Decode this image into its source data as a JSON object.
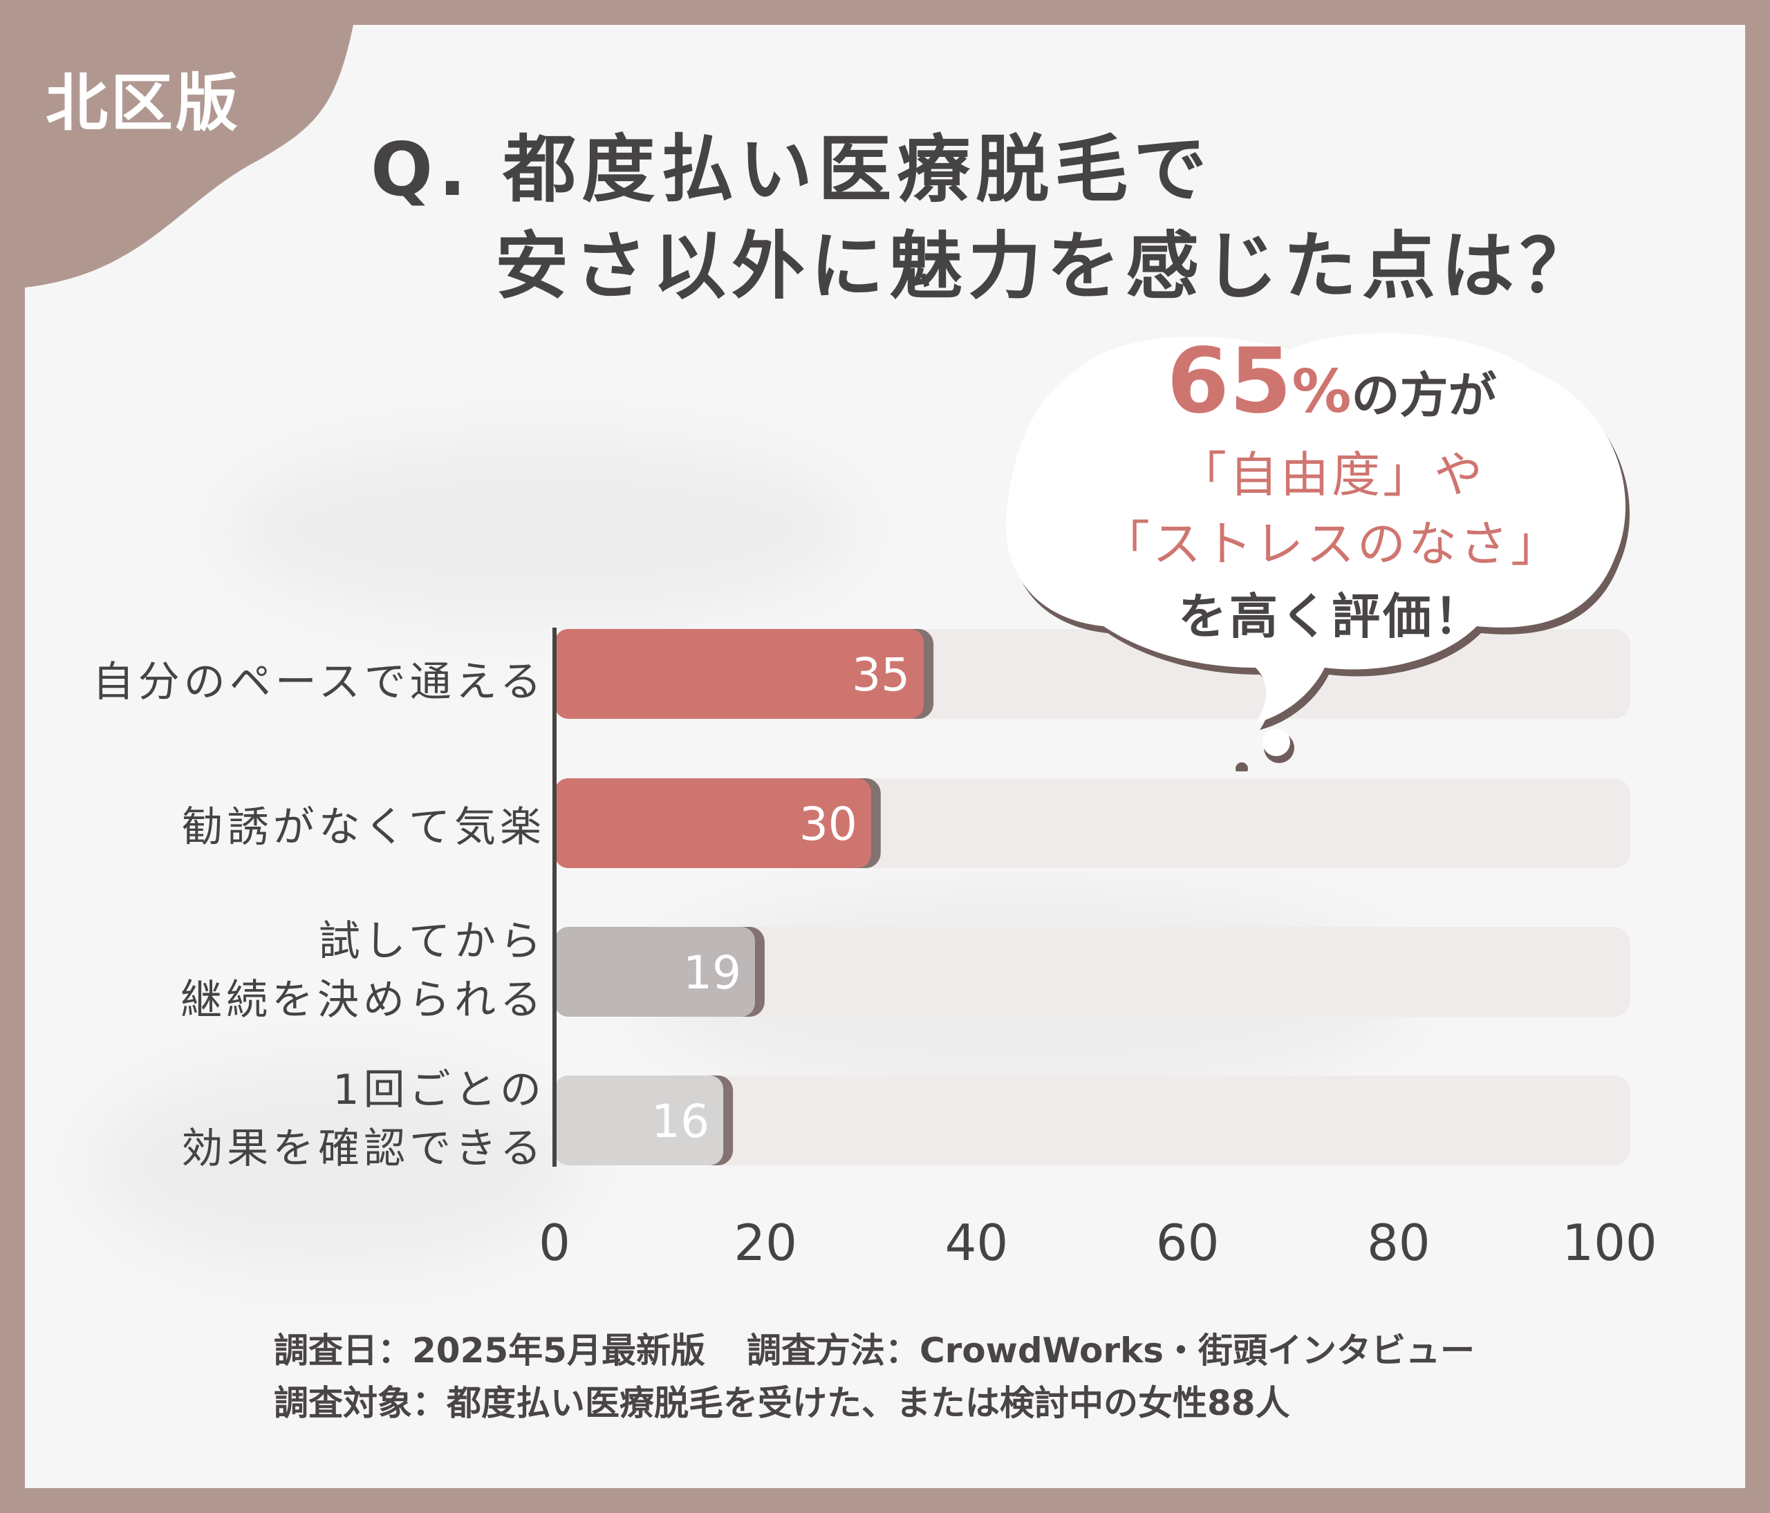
{
  "badge": "北区版",
  "title": {
    "line1": "Q. 都度払い医療脱毛で",
    "line2": "安さ以外に魅力を感じた点は？"
  },
  "callout": {
    "percent": "65",
    "percent_sign": "%",
    "line1_rest": "の方が",
    "line2": "「自由度」や",
    "line3": "「ストレスのなさ」",
    "line4": "を高く評価！"
  },
  "colors": {
    "frame": "#b09891",
    "highlight": "#cf7570",
    "gray": "#bdb8b7",
    "light_gray": "#d6d3d3",
    "track": "#efebea"
  },
  "chart_data": {
    "type": "bar",
    "orientation": "horizontal",
    "categories": [
      [
        "自分のペースで通える"
      ],
      [
        "勧誘がなくて気楽"
      ],
      [
        "試してから",
        "継続を決められる"
      ],
      [
        "1回ごとの",
        "効果を確認できる"
      ]
    ],
    "values": [
      35,
      30,
      19,
      16
    ],
    "value_labels": [
      "35",
      "30",
      "19",
      "16"
    ],
    "xlim": [
      0,
      100
    ],
    "xticks": [
      "0",
      "20",
      "40",
      "60",
      "80",
      "100"
    ],
    "bar_colors": [
      "#cf7570",
      "#cf7570",
      "#bdb8b7",
      "#d6d3d3"
    ],
    "grid": false
  },
  "footer": {
    "line1_a": "調査日：2025年5月最新版",
    "line1_b": "調査方法：CrowdWorks・街頭インタビュー",
    "line2": "調査対象：都度払い医療脱毛を受けた、または検討中の女性88人"
  }
}
